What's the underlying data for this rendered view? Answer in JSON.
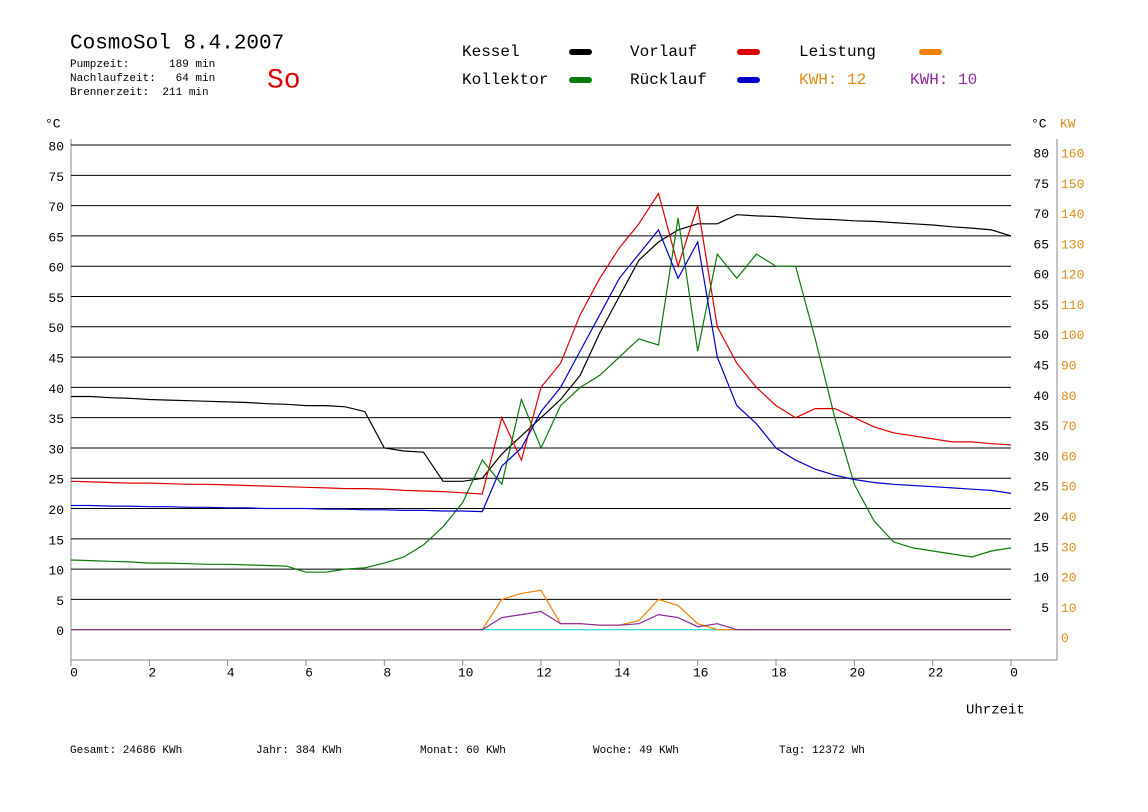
{
  "chart_data": {
    "type": "line",
    "title": "CosmoSol 8.4.2007",
    "info": [
      "Pumpzeit:      189 min",
      "Nachlaufzeit:   64 min",
      "Brennerzeit:  211 min"
    ],
    "day": "So",
    "kwh_labels": [
      {
        "text": "KWH: 12",
        "color": "#e08a1a"
      },
      {
        "text": "KWH: 10",
        "color": "#8a2a9a"
      }
    ],
    "y_label": "°C",
    "y_label_right": "°C",
    "y2_label": "KW",
    "x_label": "Uhrzeit",
    "footer": [
      "Gesamt:  24686 KWh",
      "Jahr:   384 KWh",
      "Monat:    60 KWh",
      "Woche:    49 KWh",
      "Tag:  12372 Wh"
    ],
    "xlim": [
      0,
      25.2
    ],
    "xticks": [
      0,
      2,
      4,
      6,
      8,
      10,
      12,
      14,
      16,
      18,
      20,
      22,
      {
        "value": 24,
        "label": "0"
      }
    ],
    "ylim": [
      -5,
      81
    ],
    "yticks": [
      0,
      5,
      10,
      15,
      20,
      25,
      30,
      35,
      40,
      45,
      50,
      55,
      60,
      65,
      70,
      75,
      80
    ],
    "yticks_right": [
      5,
      10,
      15,
      20,
      25,
      30,
      35,
      40,
      45,
      50,
      55,
      60,
      65,
      70,
      75,
      80
    ],
    "y2lim": [
      -10,
      162
    ],
    "y2ticks": [
      0,
      10,
      20,
      30,
      40,
      50,
      60,
      70,
      80,
      90,
      100,
      110,
      120,
      130,
      140,
      150,
      160
    ],
    "grid": true,
    "x": [
      0,
      0.5,
      1,
      1.5,
      2,
      2.5,
      3,
      3.5,
      4,
      4.5,
      5,
      5.5,
      6,
      6.5,
      7,
      7.5,
      8,
      8.5,
      9,
      9.5,
      10,
      10.5,
      11,
      11.5,
      12,
      12.5,
      13,
      13.5,
      14,
      14.5,
      15,
      15.5,
      16,
      16.5,
      17,
      17.5,
      18,
      18.5,
      19,
      19.5,
      20,
      20.5,
      21,
      21.5,
      22,
      22.5,
      23,
      23.5,
      24
    ],
    "series": [
      {
        "name": "Kessel",
        "color": "#000000",
        "values": [
          38.5,
          38.5,
          38.3,
          38.2,
          38,
          37.9,
          37.8,
          37.7,
          37.6,
          37.5,
          37.3,
          37.2,
          37,
          37,
          36.8,
          36,
          30,
          29.5,
          29.3,
          24.5,
          24.5,
          25,
          29,
          32,
          35,
          38,
          42,
          49,
          55,
          61,
          64,
          66,
          67,
          67,
          68.5,
          68.3,
          68.2,
          68,
          67.8,
          67.7,
          67.5,
          67.4,
          67.2,
          67,
          66.8,
          66.5,
          66.3,
          66,
          65
        ]
      },
      {
        "name": "Vorlauf",
        "color": "#dd0000",
        "values": [
          24.5,
          24.4,
          24.3,
          24.2,
          24.2,
          24.1,
          24,
          24,
          23.9,
          23.8,
          23.7,
          23.6,
          23.5,
          23.4,
          23.3,
          23.3,
          23.2,
          23,
          22.9,
          22.8,
          22.6,
          22.4,
          35,
          28,
          40,
          44,
          52,
          58,
          63,
          67,
          72,
          60,
          70,
          50,
          44,
          40,
          37,
          35,
          36.5,
          36.5,
          35,
          33.5,
          32.5,
          32,
          31.5,
          31,
          31,
          30.7,
          30.5
        ]
      },
      {
        "name": "Leistung",
        "color": "#f08000",
        "axis": "y2",
        "values": [
          0,
          0,
          0,
          0,
          0,
          0,
          0,
          0,
          0,
          0,
          0,
          0,
          0,
          0,
          0,
          0,
          0,
          0,
          0,
          0,
          0,
          0,
          10,
          12,
          13,
          2,
          2,
          1.5,
          1.5,
          3,
          10,
          8,
          2,
          0,
          0,
          0,
          0,
          0,
          0,
          0,
          0,
          0,
          0,
          0,
          0,
          0,
          0,
          0,
          0
        ]
      },
      {
        "name": "Kollektor",
        "color": "#0a7a0a",
        "values": [
          11.5,
          11.4,
          11.3,
          11.2,
          11,
          11,
          10.9,
          10.8,
          10.8,
          10.7,
          10.6,
          10.5,
          9.5,
          9.5,
          10,
          10.2,
          11,
          12,
          14,
          17,
          21,
          28,
          24,
          38,
          30,
          37,
          40,
          42,
          45,
          48,
          47,
          68,
          46,
          62,
          58,
          62,
          60,
          60,
          48,
          35,
          24,
          18,
          14.5,
          13.5,
          13,
          12.5,
          12,
          13,
          13.5
        ]
      },
      {
        "name": "Rücklauf",
        "color": "#0000cc",
        "values": [
          20.5,
          20.5,
          20.4,
          20.4,
          20.3,
          20.3,
          20.2,
          20.2,
          20.1,
          20.1,
          20,
          20,
          20,
          19.9,
          19.9,
          19.8,
          19.8,
          19.7,
          19.7,
          19.6,
          19.6,
          19.5,
          27,
          30,
          36,
          40,
          46,
          52,
          58,
          62,
          66,
          58,
          64,
          45,
          37,
          34,
          30,
          28,
          26.5,
          25.5,
          24.8,
          24.3,
          24,
          23.8,
          23.6,
          23.4,
          23.2,
          23,
          22.5
        ]
      },
      {
        "color": "#8a2a9a",
        "axis": "y2",
        "values": [
          0,
          0,
          0,
          0,
          0,
          0,
          0,
          0,
          0,
          0,
          0,
          0,
          0,
          0,
          0,
          0,
          0,
          0,
          0,
          0,
          0,
          0,
          4,
          5,
          6,
          2,
          2,
          1.5,
          1.5,
          2,
          5,
          4,
          1,
          2,
          0,
          0,
          0,
          0,
          0,
          0,
          0,
          0,
          0,
          0,
          0,
          0,
          0,
          0,
          0
        ]
      }
    ]
  }
}
